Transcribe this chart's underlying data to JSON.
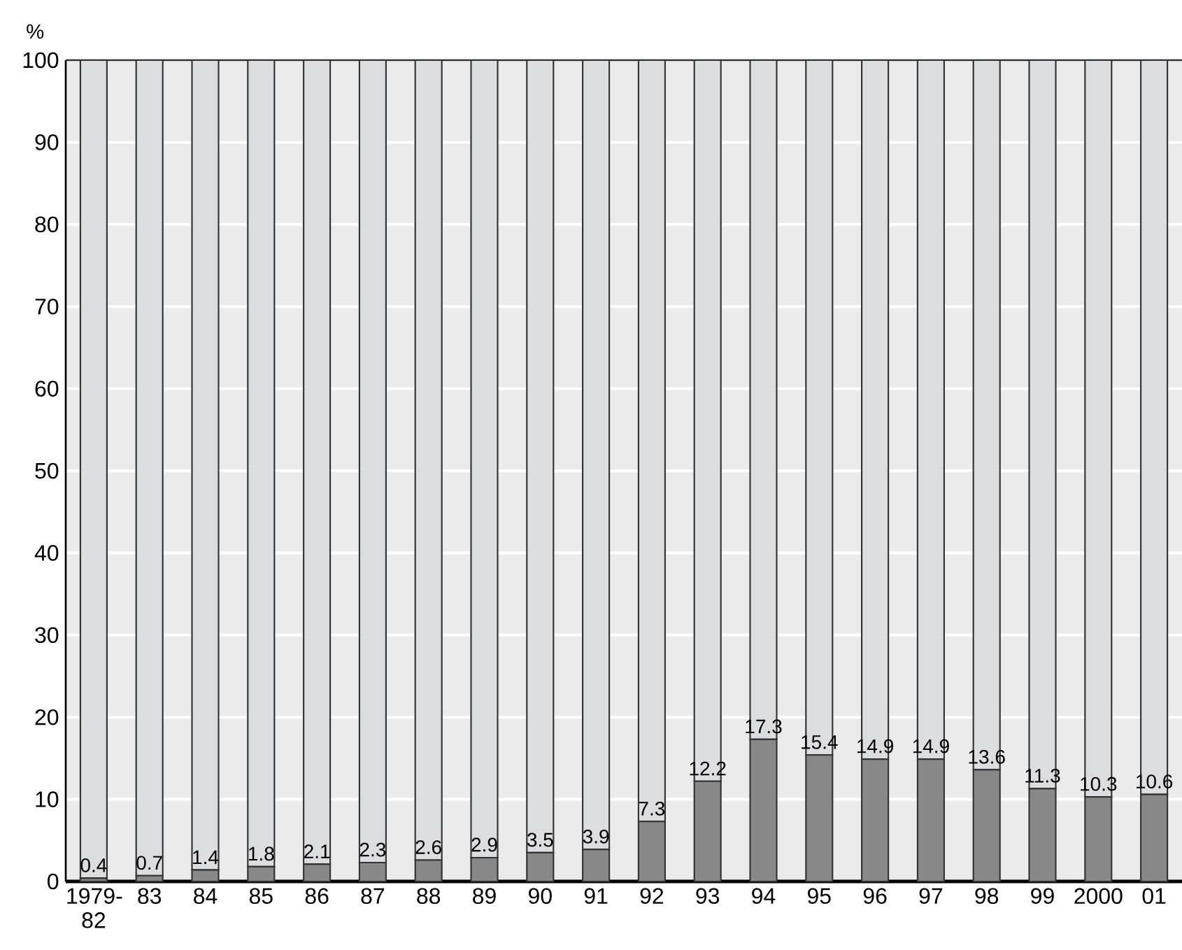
{
  "chart_data": {
    "type": "bar",
    "stacked": true,
    "ylabel": "%",
    "categories": [
      "1979-82",
      "83",
      "84",
      "85",
      "86",
      "87",
      "88",
      "89",
      "90",
      "91",
      "92",
      "93",
      "94",
      "95",
      "96",
      "97",
      "98",
      "99",
      "2000",
      "01"
    ],
    "series": [
      {
        "color": "#888888",
        "values": [
          0.4,
          0.7,
          1.4,
          1.8,
          2.1,
          2.3,
          2.6,
          2.9,
          3.5,
          3.9,
          7.3,
          12.2,
          17.3,
          15.4,
          14.9,
          14.9,
          13.6,
          11.3,
          10.3,
          10.6
        ],
        "value_labels": [
          "0.4",
          "0.7",
          "1.4",
          "1.8",
          "2.1",
          "2.3",
          "2.6",
          "2.9",
          "3.5",
          "3.9",
          "7.3",
          "12.2",
          "17.3",
          "15.4",
          "14.9",
          "14.9",
          "13.6",
          "11.3",
          "10.3",
          "10.6"
        ]
      },
      {
        "color": "#dcdddf",
        "values": [
          99.6,
          99.3,
          98.6,
          98.2,
          97.9,
          97.7,
          97.4,
          97.1,
          96.5,
          96.1,
          92.7,
          87.8,
          82.7,
          84.6,
          85.1,
          85.1,
          86.4,
          88.7,
          89.7,
          89.4
        ]
      }
    ],
    "ylim": [
      0,
      100
    ],
    "yticks": [
      0,
      10,
      20,
      30,
      40,
      50,
      60,
      70,
      80,
      90,
      100
    ],
    "grid": "y"
  }
}
